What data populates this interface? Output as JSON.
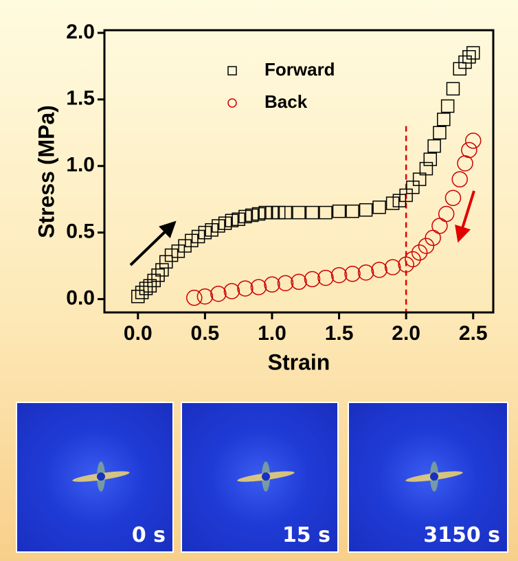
{
  "chart_data": {
    "type": "scatter",
    "xlabel": "Strain",
    "ylabel": "Stress (MPa)",
    "xlim": [
      -0.25,
      2.65
    ],
    "ylim": [
      -0.1,
      2.02
    ],
    "xticks": [
      {
        "value": 0,
        "label": "0.0"
      },
      0.5,
      {
        "value": 1,
        "label": "1.0"
      },
      1.5,
      {
        "value": 2,
        "label": "2.0"
      },
      2.5
    ],
    "yticks": [
      {
        "value": 0,
        "label": "0.0"
      },
      0.5,
      {
        "value": 1,
        "label": "1.0"
      },
      1.5,
      {
        "value": 2,
        "label": "2.0"
      }
    ],
    "vline": 2.0,
    "series": [
      {
        "name": "Forward",
        "color": "#000000",
        "marker": "square",
        "x": [
          0.0,
          0.03,
          0.06,
          0.09,
          0.12,
          0.15,
          0.18,
          0.21,
          0.25,
          0.3,
          0.35,
          0.4,
          0.45,
          0.5,
          0.55,
          0.6,
          0.65,
          0.7,
          0.75,
          0.8,
          0.85,
          0.9,
          0.95,
          1.0,
          1.05,
          1.1,
          1.2,
          1.3,
          1.4,
          1.5,
          1.6,
          1.7,
          1.8,
          1.9,
          1.95,
          2.0,
          2.05,
          2.1,
          2.15,
          2.18,
          2.21,
          2.25,
          2.28,
          2.31,
          2.35,
          2.4,
          2.44,
          2.47,
          2.5
        ],
        "values": [
          0.02,
          0.05,
          0.08,
          0.1,
          0.14,
          0.18,
          0.22,
          0.28,
          0.33,
          0.36,
          0.4,
          0.44,
          0.47,
          0.5,
          0.52,
          0.55,
          0.57,
          0.59,
          0.6,
          0.62,
          0.63,
          0.64,
          0.65,
          0.65,
          0.65,
          0.65,
          0.65,
          0.65,
          0.65,
          0.66,
          0.66,
          0.67,
          0.69,
          0.72,
          0.74,
          0.78,
          0.84,
          0.9,
          0.98,
          1.05,
          1.15,
          1.25,
          1.35,
          1.45,
          1.58,
          1.73,
          1.78,
          1.82,
          1.85
        ]
      },
      {
        "name": "Back",
        "color": "#cc0000",
        "marker": "circle",
        "x": [
          0.42,
          0.5,
          0.6,
          0.7,
          0.8,
          0.9,
          1.0,
          1.1,
          1.2,
          1.3,
          1.4,
          1.5,
          1.6,
          1.7,
          1.8,
          1.9,
          2.0,
          2.05,
          2.1,
          2.15,
          2.2,
          2.25,
          2.3,
          2.35,
          2.4,
          2.44,
          2.47,
          2.5
        ],
        "values": [
          0.01,
          0.02,
          0.04,
          0.06,
          0.08,
          0.09,
          0.11,
          0.12,
          0.13,
          0.15,
          0.16,
          0.18,
          0.19,
          0.2,
          0.22,
          0.24,
          0.26,
          0.3,
          0.35,
          0.4,
          0.46,
          0.55,
          0.64,
          0.76,
          0.9,
          1.02,
          1.12,
          1.19
        ]
      }
    ]
  },
  "images": [
    {
      "label": "0 s"
    },
    {
      "label": "15 s"
    },
    {
      "label": "3150 s"
    }
  ]
}
